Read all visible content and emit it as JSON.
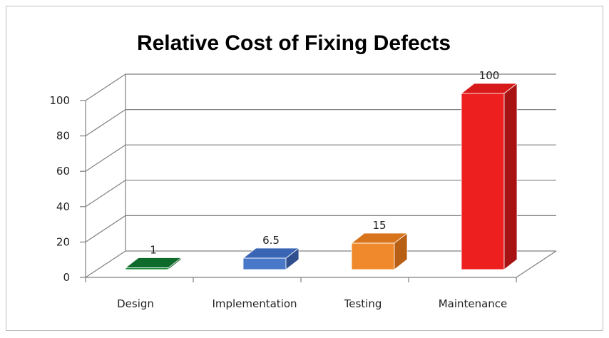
{
  "chart_data": {
    "type": "bar",
    "title": "Relative Cost of Fixing Defects",
    "categories": [
      "Design",
      "Implementation",
      "Testing",
      "Maintenance"
    ],
    "values": [
      1,
      6.5,
      15,
      100
    ],
    "data_labels": [
      "1",
      "6.5",
      "15",
      "100"
    ],
    "ylim": [
      0,
      100
    ],
    "yticks": [
      "0",
      "20",
      "40",
      "60",
      "80",
      "100"
    ],
    "grid": true,
    "legend": "none",
    "bar_colors": [
      "#1a8a3a",
      "#4a78c9",
      "#f0892b",
      "#ee1f1f"
    ],
    "bar_side_colors": [
      "#0e5a24",
      "#2f4f8e",
      "#b85f16",
      "#a71212"
    ],
    "bar_top_colors": [
      "#0f6b2c",
      "#3a65b5",
      "#d8741c",
      "#d81919"
    ],
    "xlabel": "",
    "ylabel": ""
  }
}
